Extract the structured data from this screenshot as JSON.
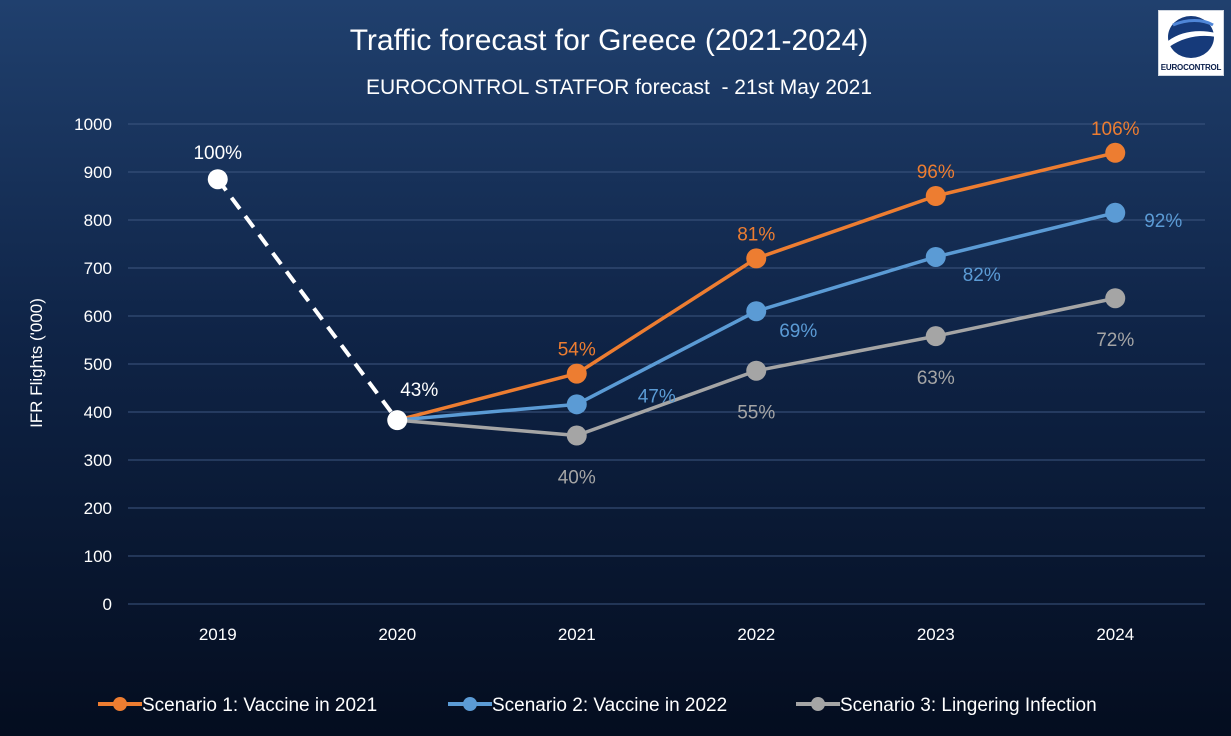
{
  "chart_data": {
    "type": "line",
    "title": "Traffic forecast for Greece (2021-2024)",
    "subtitle": "EUROCONTROL STATFOR forecast  - 21st May 2021",
    "ylabel": "IFR Flights ('000)",
    "xlabel": "",
    "ylim": [
      0,
      1000
    ],
    "yticks": [
      0,
      100,
      200,
      300,
      400,
      500,
      600,
      700,
      800,
      900,
      1000
    ],
    "categories": [
      "2019",
      "2020",
      "2021",
      "2022",
      "2023",
      "2024"
    ],
    "grid": true,
    "legend": "bottom",
    "history": {
      "x": [
        "2019",
        "2020"
      ],
      "values": [
        885,
        383
      ],
      "labels": [
        "100%",
        "43%"
      ],
      "color": "#ffffff",
      "style": "dashed"
    },
    "series": [
      {
        "name": "Scenario 1: Vaccine in 2021",
        "color": "#ed7d31",
        "x": [
          "2020",
          "2021",
          "2022",
          "2023",
          "2024"
        ],
        "values": [
          383,
          480,
          720,
          850,
          940
        ],
        "labels": [
          "",
          "54%",
          "81%",
          "96%",
          "106%"
        ]
      },
      {
        "name": "Scenario 2: Vaccine in 2022",
        "color": "#5b9bd5",
        "x": [
          "2020",
          "2021",
          "2022",
          "2023",
          "2024"
        ],
        "values": [
          383,
          416,
          610,
          723,
          815
        ],
        "labels": [
          "",
          "47%",
          "69%",
          "82%",
          "92%"
        ]
      },
      {
        "name": "Scenario 3: Lingering Infection",
        "color": "#a5a5a5",
        "x": [
          "2020",
          "2021",
          "2022",
          "2023",
          "2024"
        ],
        "values": [
          383,
          351,
          486,
          558,
          637
        ],
        "labels": [
          "",
          "40%",
          "55%",
          "63%",
          "72%"
        ]
      }
    ]
  },
  "logo": {
    "text": "EUROCONTROL",
    "icon": "eurocontrol-logo"
  }
}
